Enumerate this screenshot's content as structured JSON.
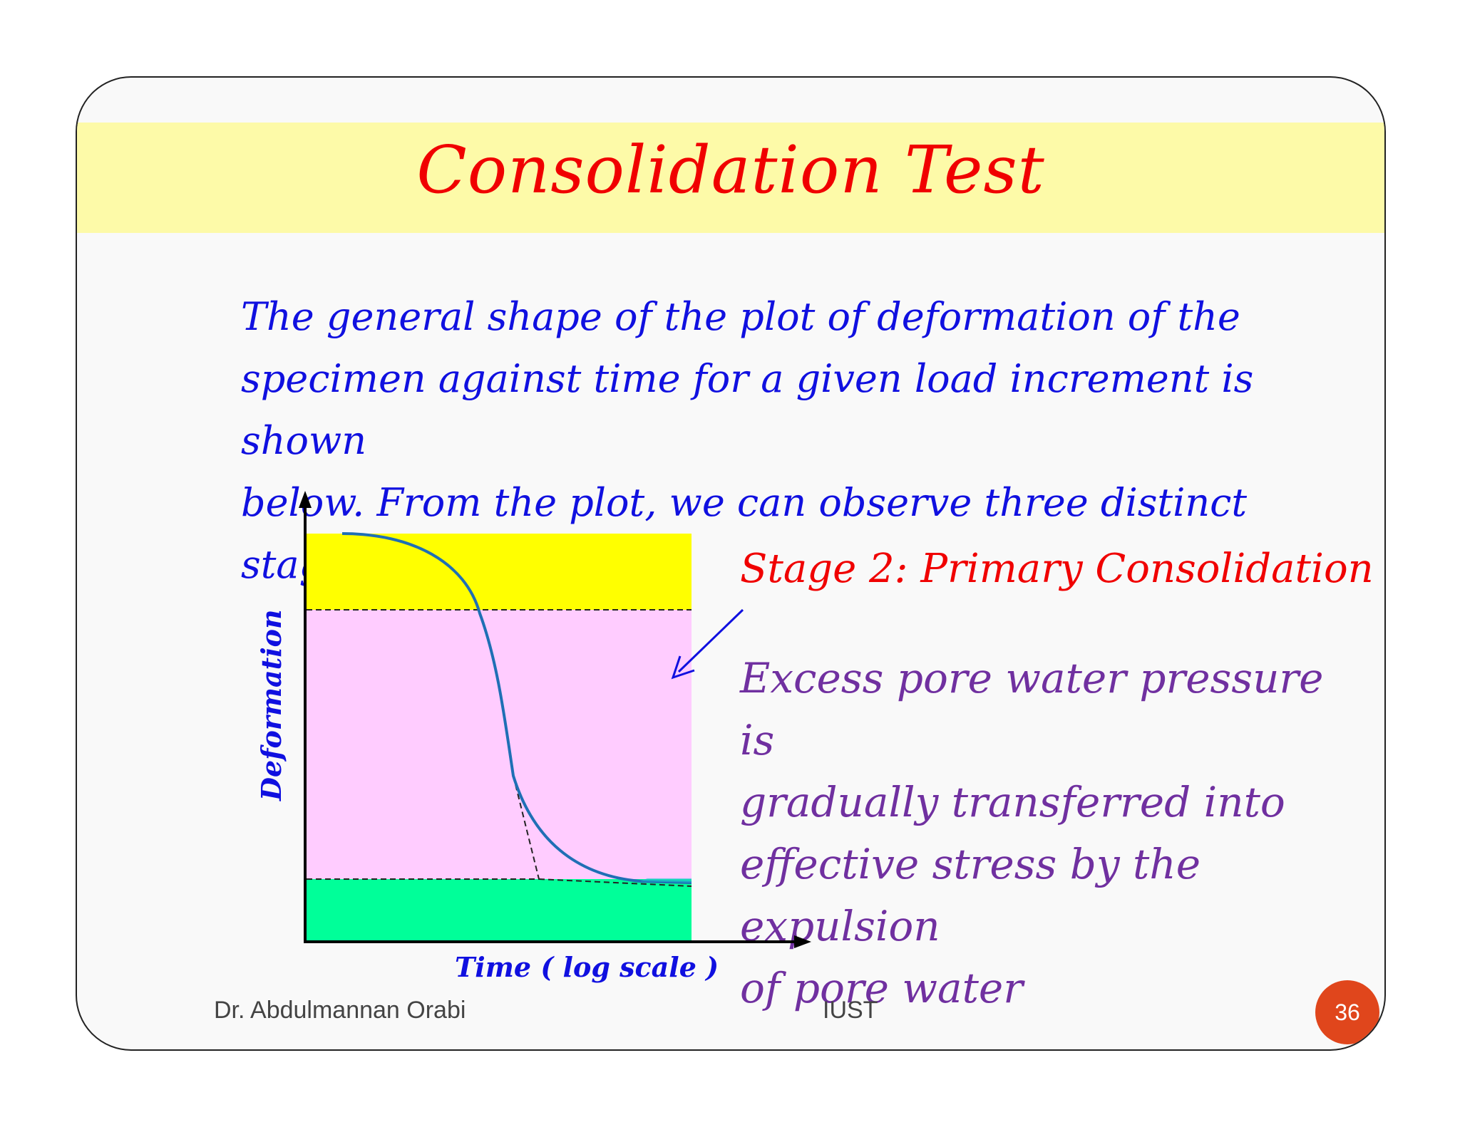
{
  "slide": {
    "title": "Consolidation Test",
    "intro_lines": [
      "The general shape of  the plot of  deformation of  the",
      "specimen against time for a given load increment is shown",
      "below. From the plot, we can observe three distinct stages:"
    ],
    "stage_title": "Stage 2: Primary Consolidation",
    "stage_desc_lines": [
      "Excess pore water pressure is",
      "gradually transferred into",
      "effective stress by the expulsion",
      "of  pore water"
    ],
    "footer_author": "Dr. Abdulmannan Orabi",
    "footer_institution": "IUST",
    "page_number": "36"
  },
  "diagram": {
    "ylabel": "Deformation",
    "xlabel": "Time ( log scale )",
    "colors": {
      "stage1_band": "#ffff00",
      "stage2_band": "#ffccff",
      "stage3_band": "#00ff99",
      "curve": "#1f6fb5",
      "arrow": "#1010e0"
    }
  }
}
